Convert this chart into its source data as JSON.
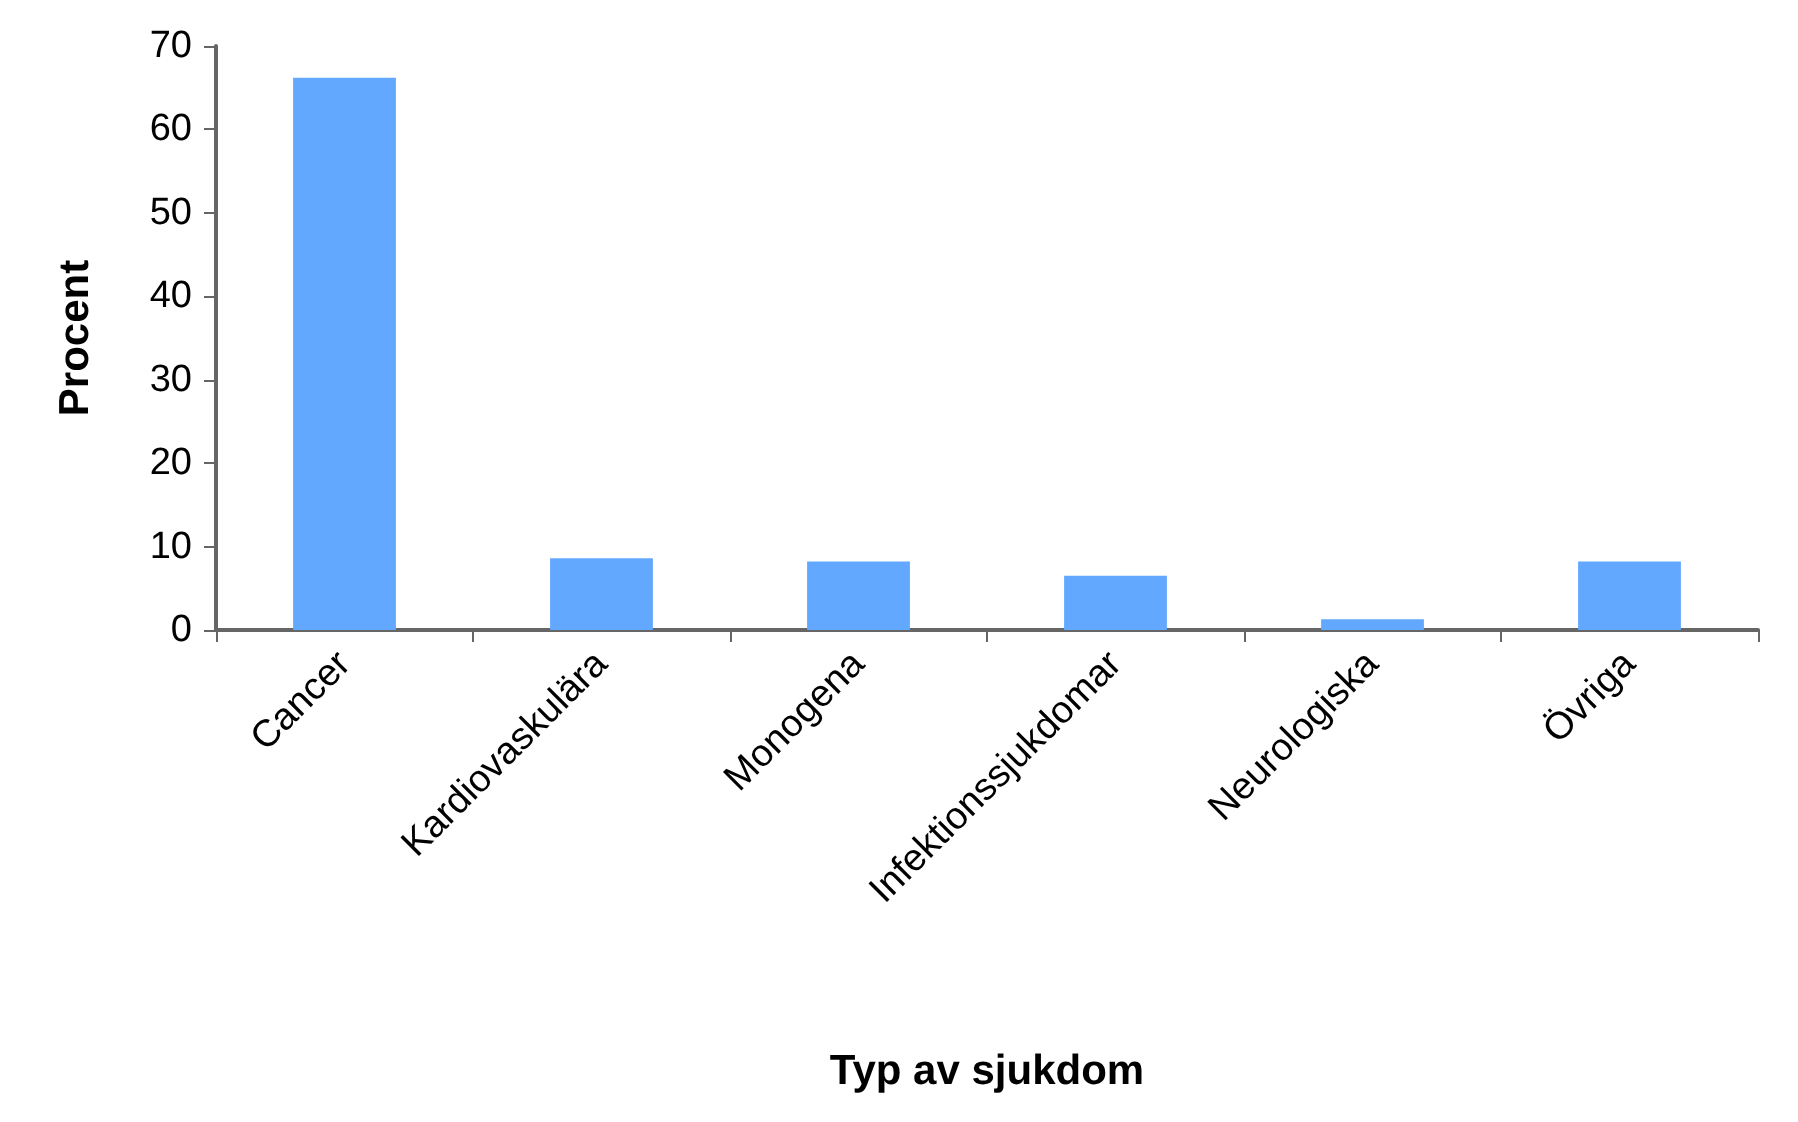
{
  "chart_data": {
    "type": "bar",
    "xlabel": "Typ av sjukdom",
    "ylabel": "Procent",
    "categories": [
      "Cancer",
      "Kardiovaskulära",
      "Monogena",
      "Infektionssjukdomar",
      "Neurologiska",
      "Övriga"
    ],
    "values": [
      66.2,
      8.6,
      8.2,
      6.5,
      1.3,
      8.2
    ],
    "color": "#62a8ff",
    "ylim": [
      0,
      70
    ],
    "yticks": [
      0,
      10,
      20,
      30,
      40,
      50,
      60,
      70
    ]
  }
}
